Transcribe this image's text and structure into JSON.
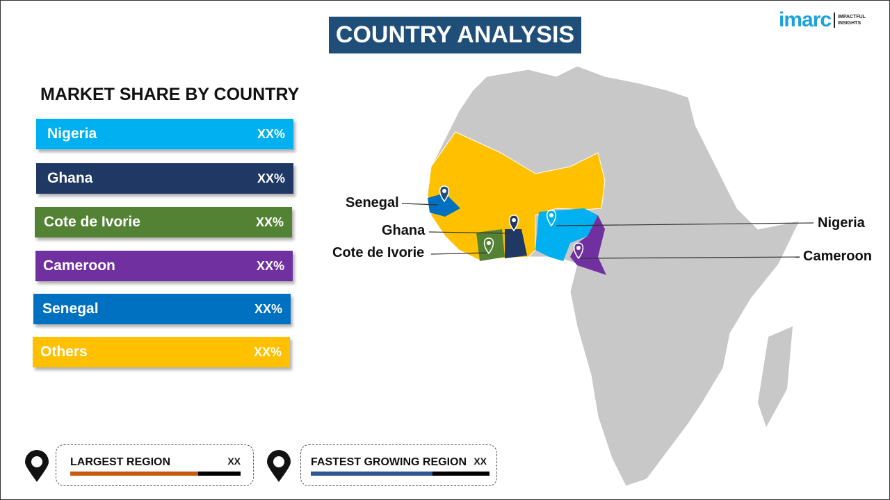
{
  "header": {
    "title": "COUNTRY ANALYSIS",
    "logo_text": "imarc",
    "logo_tagline": "IMPACTFUL INSIGHTS"
  },
  "legend": {
    "title": "MARKET SHARE BY COUNTRY",
    "items": [
      {
        "label": "Nigeria",
        "value": "XX%",
        "color": "#00b0f0"
      },
      {
        "label": "Ghana",
        "value": "XX%",
        "color": "#1f3864"
      },
      {
        "label": "Cote de Ivorie",
        "value": "XX%",
        "color": "#548235"
      },
      {
        "label": "Cameroon",
        "value": "XX%",
        "color": "#7030a0"
      },
      {
        "label": "Senegal",
        "value": "XX%",
        "color": "#0070c0"
      },
      {
        "label": "Others",
        "value": "XX%",
        "color": "#ffc000"
      }
    ]
  },
  "map": {
    "labels": [
      "Senegal",
      "Ghana",
      "Cote de Ivorie",
      "Nigeria",
      "Cameroon"
    ],
    "base_color": "#c8c8c8"
  },
  "cards": [
    {
      "label": "LARGEST REGION",
      "value": "XX",
      "fill_percent": 75,
      "color": "#c55a11"
    },
    {
      "label": "FASTEST GROWING REGION",
      "value": "XX",
      "fill_percent": 68,
      "color": "#2f5597"
    }
  ]
}
